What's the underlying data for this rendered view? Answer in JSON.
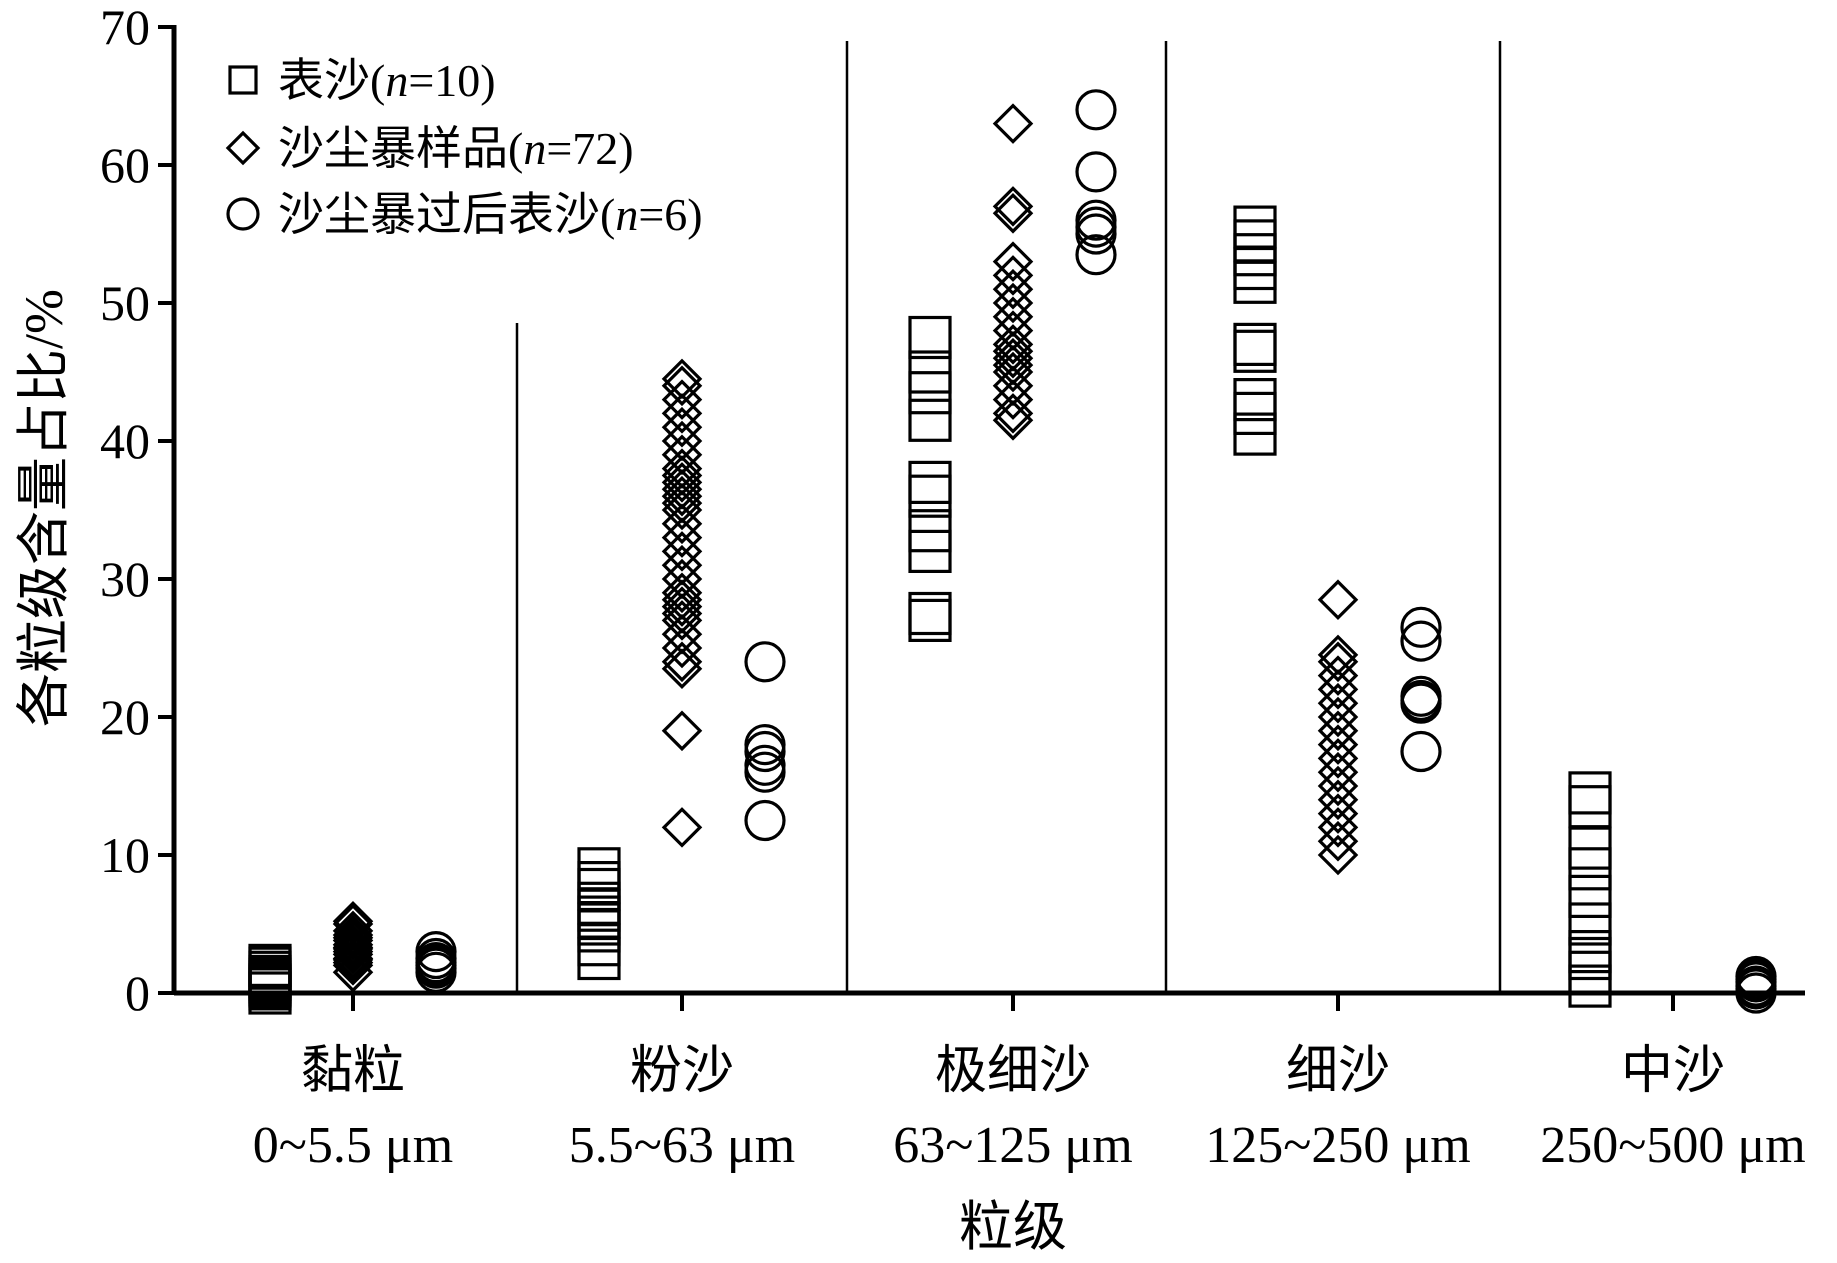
{
  "chart_data": {
    "type": "scatter",
    "ylabel": "各粒级含量占比/%",
    "xlabel": "粒级",
    "ylim": [
      0,
      70
    ],
    "yticks": [
      0,
      10,
      20,
      30,
      40,
      50,
      60,
      70
    ],
    "grid": false,
    "legend_position": "top-left",
    "categories": [
      {
        "name": "黏粒",
        "range": "0~5.5 μm"
      },
      {
        "name": "粉沙",
        "range": "5.5~63 μm"
      },
      {
        "name": "极细沙",
        "range": "63~125 μm"
      },
      {
        "name": "细沙",
        "range": "125~250 μm"
      },
      {
        "name": "中沙",
        "range": "250~500 μm"
      }
    ],
    "series": [
      {
        "name": "表沙",
        "n_label": "n",
        "n_value": "=10)",
        "marker": "square",
        "values": [
          [
            0,
            0.5,
            1,
            1.5,
            2,
            0.3,
            0.8,
            1.2,
            1.8,
            0.6
          ],
          [
            2.5,
            3.5,
            4.5,
            5.5,
            6,
            6.5,
            7.5,
            8,
            9,
            5
          ],
          [
            27,
            27.5,
            32,
            33.5,
            36,
            37,
            41.5,
            43.5,
            45,
            47.5
          ],
          [
            40.5,
            42,
            46.5,
            47,
            51.5,
            52.5,
            53.5,
            54.5,
            55.5,
            43
          ],
          [
            0.5,
            1.5,
            3,
            5,
            7,
            9,
            10.5,
            13.5,
            14.5,
            2.5
          ]
        ]
      },
      {
        "name": "沙尘暴样品",
        "n_label": "n",
        "n_value": "=72)",
        "marker": "diamond",
        "values": [
          [
            1.5,
            2,
            2.2,
            2.5,
            2.8,
            3,
            3.2,
            3.5,
            3.8,
            4,
            4.2,
            4.5,
            5,
            5.2,
            2.4,
            3.3
          ],
          [
            12,
            19,
            23.5,
            24,
            25,
            26,
            27,
            27.5,
            28,
            28.5,
            29,
            30,
            31,
            32,
            33,
            34,
            35,
            35.5,
            36,
            36.5,
            37,
            37.5,
            38,
            39,
            40,
            41,
            42,
            43,
            44,
            44.5
          ],
          [
            41.5,
            42,
            43,
            44,
            45,
            45.5,
            46,
            46.5,
            47,
            48,
            49,
            50,
            51,
            52,
            53,
            56.5,
            57,
            63
          ],
          [
            10,
            11,
            12,
            13,
            14,
            15,
            16,
            17,
            18,
            19,
            20,
            21,
            22,
            23,
            24,
            24.5,
            28.5
          ]
        ]
      },
      {
        "name": "沙尘暴过后表沙",
        "n_label": "n",
        "n_value": "=6)",
        "marker": "circle",
        "values": [
          [
            1.5,
            2,
            2.5,
            3,
            1.8,
            2.2
          ],
          [
            12.5,
            16,
            16.5,
            17.5,
            18,
            24
          ],
          [
            53.5,
            55,
            55.5,
            56,
            59.5,
            64
          ],
          [
            17.5,
            21,
            21.5,
            25.5,
            26.5,
            21.2
          ],
          [
            0,
            0.3,
            0.5,
            0.8,
            1,
            1.2
          ]
        ]
      }
    ]
  }
}
